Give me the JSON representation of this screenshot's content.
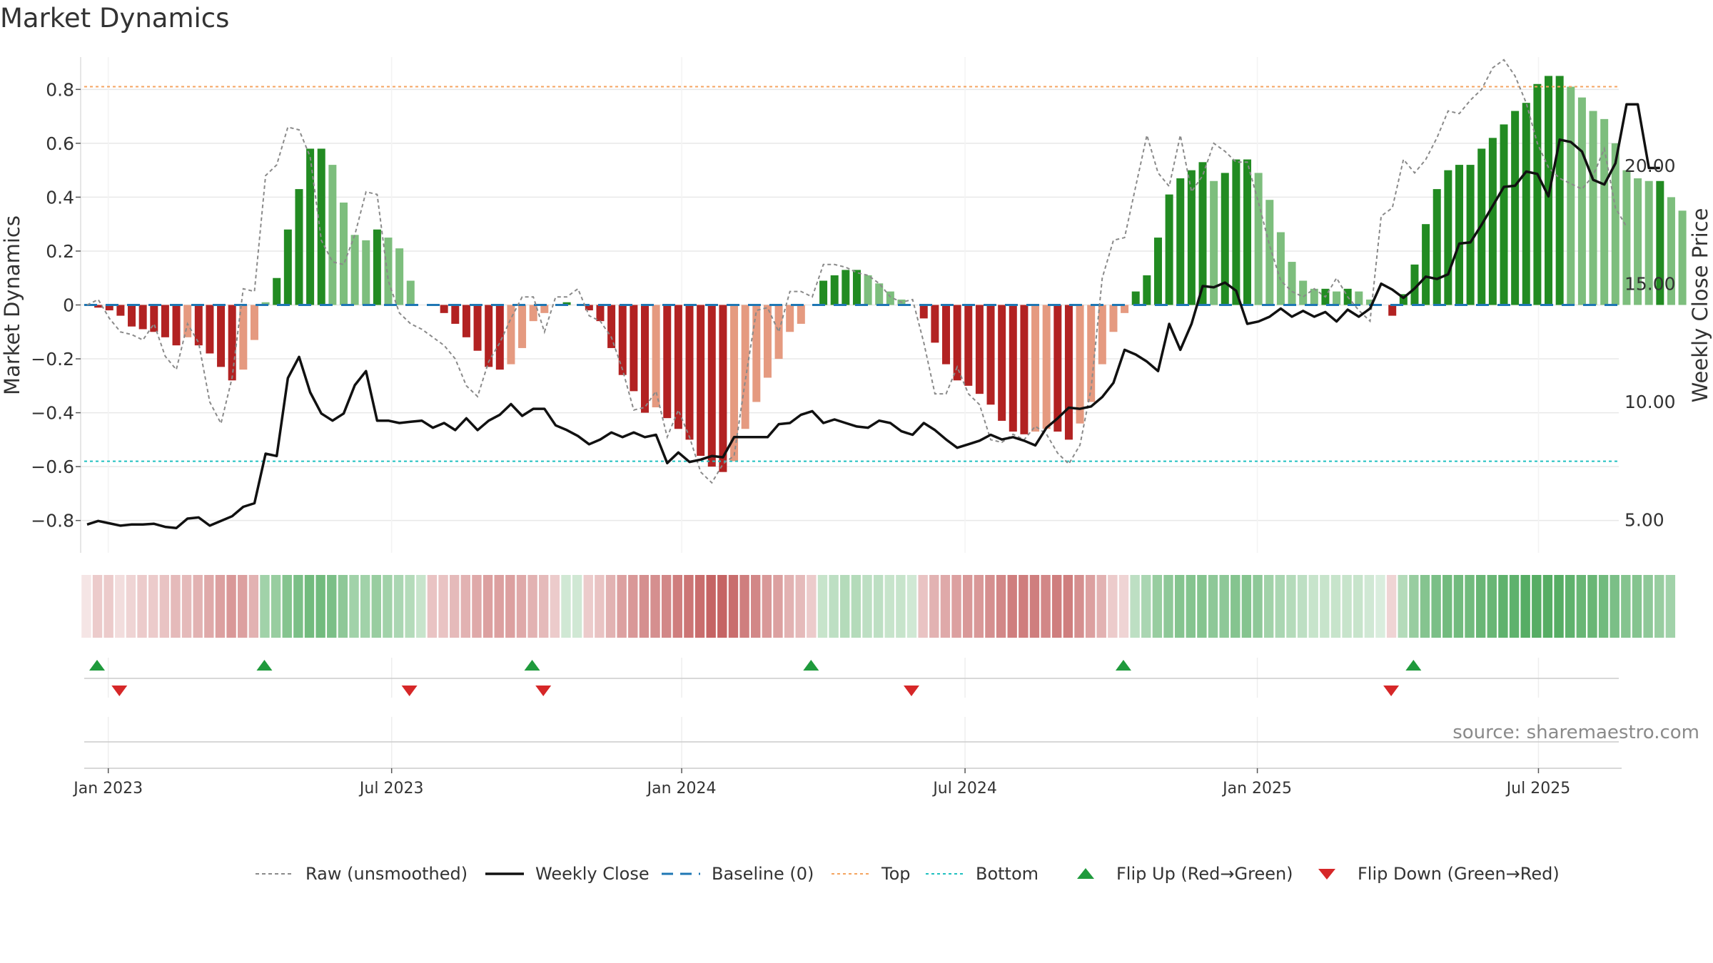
{
  "title": "Market Dynamics",
  "source": "source: sharemaestro.com",
  "colors": {
    "strong_green": "#228b22",
    "light_green": "#7dbe7d",
    "strong_red": "#b22222",
    "light_red": "#e59a80",
    "raw": "#8a8a8a",
    "close": "#111111",
    "baseline": "#1f77b4",
    "top": "#f4a460",
    "bottom": "#20c0c0",
    "flip_up": "#1f9a3c",
    "flip_down": "#d62728",
    "grid": "#e8e8e8"
  },
  "chart_data": {
    "type": "bar",
    "title": "Market Dynamics",
    "ylabel_left": "Market Dynamics",
    "ylabel_right": "Weekly Close Price",
    "ylim_left": [
      -0.92,
      0.92
    ],
    "ylim_right": [
      3.6,
      24.6
    ],
    "left_ticks": [
      "0.8",
      "0.6",
      "0.4",
      "0.2",
      "0",
      "−0.2",
      "−0.4",
      "−0.6",
      "−0.8"
    ],
    "left_tick_values": [
      0.8,
      0.6,
      0.4,
      0.2,
      0,
      -0.2,
      -0.4,
      -0.6,
      -0.8
    ],
    "right_ticks": [
      "20.00",
      "15.00",
      "10.00",
      "5.00"
    ],
    "right_tick_values": [
      20,
      15,
      10,
      5
    ],
    "top_threshold": 0.81,
    "bottom_threshold": -0.58,
    "baseline": 0,
    "x_start": "2022-12-19",
    "x_labels": [
      "Jan 2023",
      "Jul 2023",
      "Jan 2024",
      "Jul 2024",
      "Jan 2025",
      "Jul 2025"
    ],
    "x_label_weeks": [
      1.9,
      27.3,
      53.3,
      78.7,
      104.9,
      130.1
    ],
    "bars": [
      0,
      -0.01,
      -0.02,
      -0.04,
      -0.08,
      -0.09,
      -0.1,
      -0.12,
      -0.15,
      -0.12,
      -0.15,
      -0.18,
      -0.23,
      -0.28,
      -0.24,
      -0.13,
      0.01,
      0.1,
      0.28,
      0.43,
      0.58,
      0.58,
      0.52,
      0.38,
      0.26,
      0.24,
      0.28,
      0.25,
      0.21,
      0.09,
      0,
      0,
      -0.03,
      -0.07,
      -0.12,
      -0.17,
      -0.23,
      -0.24,
      -0.22,
      -0.16,
      -0.06,
      -0.03,
      0,
      0.01,
      0,
      -0.02,
      -0.06,
      -0.16,
      -0.26,
      -0.32,
      -0.4,
      -0.38,
      -0.42,
      -0.46,
      -0.5,
      -0.56,
      -0.6,
      -0.62,
      -0.58,
      -0.46,
      -0.36,
      -0.27,
      -0.2,
      -0.1,
      -0.07,
      0,
      0.09,
      0.11,
      0.13,
      0.13,
      0.11,
      0.08,
      0.05,
      0.02,
      0,
      -0.05,
      -0.14,
      -0.22,
      -0.28,
      -0.3,
      -0.33,
      -0.37,
      -0.43,
      -0.47,
      -0.48,
      -0.47,
      -0.46,
      -0.47,
      -0.5,
      -0.44,
      -0.36,
      -0.22,
      -0.1,
      -0.03,
      0.05,
      0.11,
      0.25,
      0.41,
      0.47,
      0.5,
      0.53,
      0.46,
      0.49,
      0.54,
      0.54,
      0.49,
      0.39,
      0.27,
      0.16,
      0.09,
      0.06,
      0.06,
      0.05,
      0.06,
      0.05,
      0.02,
      0,
      -0.04,
      0.04,
      0.15,
      0.3,
      0.43,
      0.5,
      0.52,
      0.52,
      0.58,
      0.62,
      0.67,
      0.72,
      0.75,
      0.82,
      0.85,
      0.85,
      0.81,
      0.77,
      0.72,
      0.69,
      0.6,
      0.5,
      0.47,
      0.46,
      0.46,
      0.4,
      0.35
    ],
    "raw": [
      0,
      0.02,
      -0.05,
      -0.1,
      -0.11,
      -0.13,
      -0.07,
      -0.19,
      -0.24,
      -0.07,
      -0.14,
      -0.36,
      -0.44,
      -0.27,
      0.06,
      0.05,
      0.48,
      0.52,
      0.66,
      0.65,
      0.55,
      0.24,
      0.16,
      0.15,
      0.26,
      0.42,
      0.41,
      0.09,
      -0.03,
      -0.07,
      -0.09,
      -0.12,
      -0.15,
      -0.2,
      -0.3,
      -0.34,
      -0.21,
      -0.14,
      -0.05,
      0.03,
      0.03,
      -0.1,
      0.03,
      0.03,
      0.06,
      -0.04,
      -0.06,
      -0.12,
      -0.24,
      -0.39,
      -0.38,
      -0.32,
      -0.49,
      -0.39,
      -0.49,
      -0.62,
      -0.66,
      -0.59,
      -0.56,
      -0.28,
      -0.02,
      -0.01,
      -0.1,
      0.05,
      0.05,
      0.03,
      0.15,
      0.15,
      0.14,
      0.12,
      0.11,
      0.08,
      0.03,
      0.01,
      0.02,
      -0.14,
      -0.33,
      -0.33,
      -0.23,
      -0.33,
      -0.37,
      -0.5,
      -0.51,
      -0.48,
      -0.5,
      -0.45,
      -0.48,
      -0.55,
      -0.59,
      -0.52,
      -0.31,
      0.1,
      0.24,
      0.25,
      0.44,
      0.63,
      0.49,
      0.44,
      0.63,
      0.42,
      0.48,
      0.6,
      0.57,
      0.53,
      0.53,
      0.38,
      0.22,
      0.09,
      0.05,
      0.03,
      0.06,
      0.03,
      0.1,
      0.03,
      -0.02,
      -0.06,
      0.33,
      0.36,
      0.54,
      0.49,
      0.54,
      0.62,
      0.72,
      0.71,
      0.76,
      0.8,
      0.88,
      0.91,
      0.85,
      0.75,
      0.6,
      0.51,
      0.47,
      0.45,
      0.43,
      0.48,
      0.58,
      0.36,
      0.29
    ],
    "close": [
      4.8,
      4.95,
      4.85,
      4.75,
      4.8,
      4.8,
      4.83,
      4.7,
      4.65,
      5.05,
      5.1,
      4.75,
      4.95,
      5.15,
      5.55,
      5.7,
      7.8,
      7.7,
      11,
      11.9,
      10.4,
      9.5,
      9.2,
      9.5,
      10.7,
      11.3,
      9.2,
      9.2,
      9.1,
      9.15,
      9.2,
      8.9,
      9.1,
      8.8,
      9.3,
      8.8,
      9.2,
      9.45,
      9.9,
      9.4,
      9.7,
      9.7,
      9,
      8.8,
      8.55,
      8.2,
      8.4,
      8.7,
      8.5,
      8.7,
      8.5,
      8.6,
      7.4,
      7.85,
      7.45,
      7.55,
      7.7,
      7.65,
      8.5,
      8.5,
      8.5,
      8.5,
      9.05,
      9.1,
      9.45,
      9.6,
      9.1,
      9.25,
      9.1,
      8.95,
      8.9,
      9.2,
      9.1,
      8.75,
      8.6,
      9.1,
      8.8,
      8.4,
      8.05,
      8.2,
      8.35,
      8.6,
      8.4,
      8.5,
      8.35,
      8.15,
      8.9,
      9.3,
      9.75,
      9.7,
      9.8,
      10.2,
      10.8,
      12.2,
      12.0,
      11.7,
      11.3,
      13.3,
      12.2,
      13.3,
      14.9,
      14.85,
      15.05,
      14.7,
      13.3,
      13.4,
      13.6,
      13.95,
      13.6,
      13.85,
      13.6,
      13.8,
      13.4,
      13.9,
      13.6,
      13.95,
      15.0,
      14.75,
      14.4,
      14.8,
      15.3,
      15.2,
      15.4,
      16.7,
      16.75,
      17.5,
      18.3,
      19.1,
      19.15,
      19.75,
      19.65,
      18.7,
      21.1,
      21.0,
      20.6,
      19.4,
      19.2,
      20.1,
      22.6,
      22.6,
      19.9,
      19.9
    ],
    "status_strip": [
      0.15,
      0.3,
      0.3,
      0.2,
      0.25,
      0.3,
      0.3,
      0.35,
      0.4,
      0.4,
      0.45,
      0.5,
      0.55,
      0.6,
      0.55,
      0.45,
      0.5,
      0.55,
      0.65,
      0.7,
      0.75,
      0.75,
      0.7,
      0.6,
      0.5,
      0.5,
      0.55,
      0.5,
      0.45,
      0.4,
      0.3,
      0.35,
      0.35,
      0.4,
      0.45,
      0.5,
      0.55,
      0.55,
      0.55,
      0.5,
      0.45,
      0.4,
      0.3,
      0.25,
      0.25,
      0.3,
      0.35,
      0.45,
      0.55,
      0.6,
      0.65,
      0.65,
      0.7,
      0.75,
      0.8,
      0.85,
      0.9,
      0.9,
      0.85,
      0.75,
      0.7,
      0.6,
      0.55,
      0.45,
      0.4,
      0.3,
      0.3,
      0.35,
      0.4,
      0.4,
      0.35,
      0.35,
      0.3,
      0.3,
      0.25,
      0.35,
      0.45,
      0.5,
      0.55,
      0.6,
      0.6,
      0.65,
      0.7,
      0.75,
      0.75,
      0.75,
      0.7,
      0.75,
      0.75,
      0.65,
      0.55,
      0.45,
      0.3,
      0.25,
      0.35,
      0.45,
      0.55,
      0.6,
      0.65,
      0.65,
      0.65,
      0.6,
      0.6,
      0.65,
      0.65,
      0.6,
      0.5,
      0.45,
      0.4,
      0.35,
      0.3,
      0.3,
      0.3,
      0.3,
      0.3,
      0.25,
      0.2,
      0.25,
      0.4,
      0.55,
      0.65,
      0.7,
      0.75,
      0.75,
      0.75,
      0.8,
      0.8,
      0.85,
      0.85,
      0.9,
      0.9,
      0.9,
      0.9,
      0.85,
      0.8,
      0.8,
      0.75,
      0.7,
      0.65,
      0.65,
      0.6,
      0.55,
      0.5
    ],
    "flip_up_weeks": [
      0,
      15,
      39,
      64,
      92,
      118
    ],
    "flip_down_weeks": [
      2,
      28,
      40,
      73,
      116
    ],
    "legend": [
      {
        "label": "Raw (unsmoothed)",
        "style": "dashed-gray"
      },
      {
        "label": "Weekly Close",
        "style": "solid-black"
      },
      {
        "label": "Baseline (0)",
        "style": "dashed-blue"
      },
      {
        "label": "Top",
        "style": "dotted-orange"
      },
      {
        "label": "Bottom",
        "style": "dotted-cyan"
      },
      {
        "label": "Flip Up (Red→Green)",
        "style": "triangle-up-green"
      },
      {
        "label": "Flip Down (Green→Red)",
        "style": "triangle-down-red"
      }
    ]
  }
}
